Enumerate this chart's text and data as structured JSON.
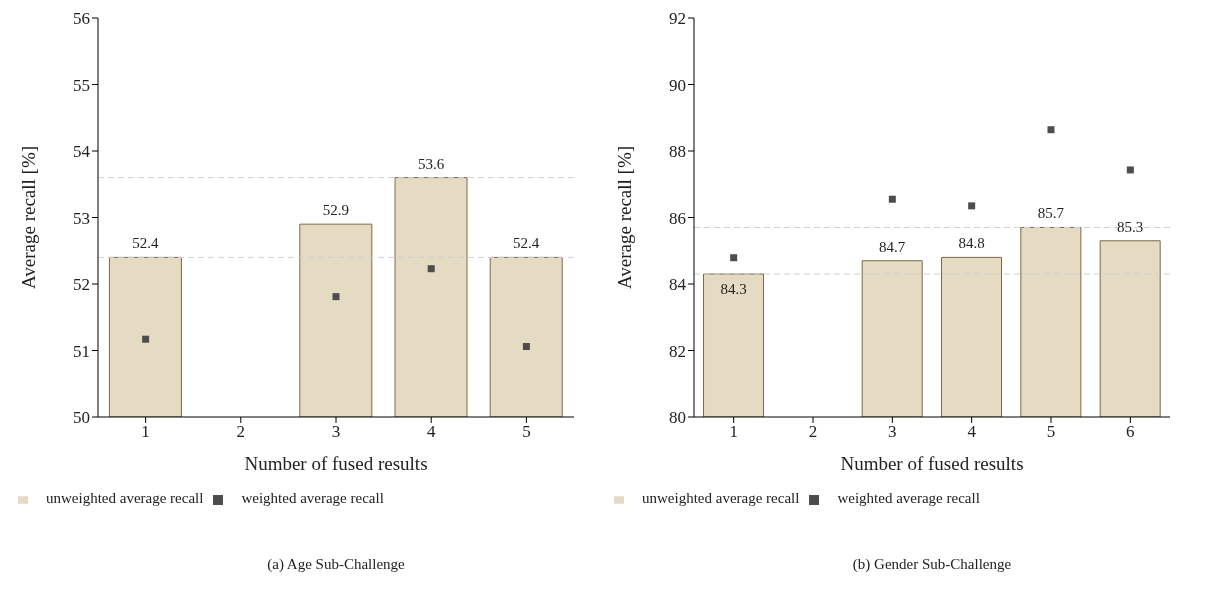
{
  "chart_data": [
    {
      "type": "bar",
      "categories": [
        "1",
        "2",
        "3",
        "4",
        "5"
      ],
      "xlabel": "Number of fused results",
      "ylabel": "Average recall [%]",
      "ylim": [
        50,
        56
      ],
      "yticks": [
        50,
        51,
        52,
        53,
        54,
        55,
        56
      ],
      "grid": false,
      "legend": "bottom",
      "series": [
        {
          "name": "unweighted average recall",
          "color": "#e5dbc3",
          "values": [
            52.4,
            null,
            52.9,
            53.6,
            52.4
          ],
          "value_labels": [
            "52.4",
            null,
            "52.9",
            "53.6",
            "52.4"
          ]
        },
        {
          "name": "weighted average recall",
          "type": "scatter",
          "marker": "square",
          "color": "#4d4d4d",
          "values": [
            51.17,
            null,
            51.81,
            52.23,
            51.06
          ]
        }
      ],
      "ref_lines": [
        {
          "axis": "y",
          "value": 53.6,
          "color": "#d0d0d0",
          "line_style": "dashed"
        },
        {
          "axis": "y",
          "value": 52.4,
          "color": "#d0d0d0",
          "line_style": "dashed"
        }
      ],
      "annotations": [
        "(a) Age Sub-Challenge"
      ]
    },
    {
      "type": "bar",
      "categories": [
        "1",
        "2",
        "3",
        "4",
        "5",
        "6"
      ],
      "xlabel": "Number of fused results",
      "ylabel": "Average recall [%]",
      "ylim": [
        80,
        92
      ],
      "yticks": [
        80,
        82,
        84,
        86,
        88,
        90,
        92
      ],
      "grid": false,
      "legend": "bottom",
      "series": [
        {
          "name": "unweighted average recall",
          "color": "#e5dbc3",
          "values": [
            84.3,
            null,
            84.7,
            84.8,
            85.7,
            85.3
          ],
          "value_labels": [
            "84.3",
            null,
            "84.7",
            "84.8",
            "85.7",
            "85.3"
          ]
        },
        {
          "name": "weighted average recall",
          "type": "scatter",
          "marker": "square",
          "color": "#4d4d4d",
          "values": [
            84.79,
            null,
            86.55,
            86.35,
            88.64,
            87.43
          ]
        }
      ],
      "ref_lines": [
        {
          "axis": "y",
          "value": 85.7,
          "color": "#d0d0d0",
          "line_style": "dashed"
        },
        {
          "axis": "y",
          "value": 84.3,
          "color": "#d0d0d0",
          "line_style": "dashed"
        }
      ],
      "annotations": [
        "(b) Gender Sub-Challenge"
      ]
    }
  ]
}
